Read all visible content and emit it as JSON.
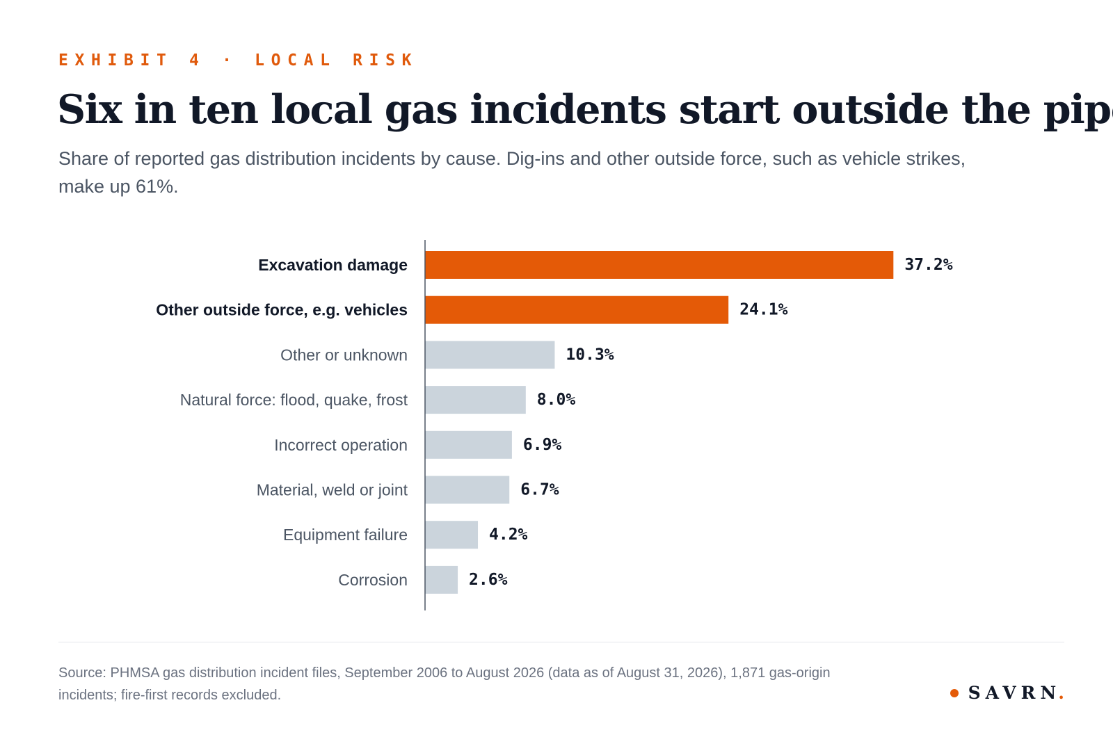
{
  "header": {
    "eyebrow": "EXHIBIT 4 · LOCAL RISK",
    "title": "Six in ten local gas incidents start outside the pipe",
    "subtitle": "Share of reported gas distribution incidents by cause. Dig-ins and other outside force, such as vehicle strikes, make up 61%."
  },
  "chart_data": {
    "type": "bar",
    "orientation": "horizontal",
    "categories": [
      "Excavation damage",
      "Other outside force, e.g. vehicles",
      "Other or unknown",
      "Natural force: flood, quake, frost",
      "Incorrect operation",
      "Material, weld or joint",
      "Equipment failure",
      "Corrosion"
    ],
    "values": [
      37.2,
      24.1,
      10.3,
      8.0,
      6.9,
      6.7,
      4.2,
      2.6
    ],
    "value_labels": [
      "37.2%",
      "24.1%",
      "10.3%",
      "8.0%",
      "6.9%",
      "6.7%",
      "4.2%",
      "2.6%"
    ],
    "highlighted": [
      true,
      true,
      false,
      false,
      false,
      false,
      false,
      false
    ],
    "title": "Six in ten local gas incidents start outside the pipe",
    "xlabel": "",
    "ylabel": "",
    "xlim": [
      0,
      40
    ],
    "grid": false,
    "legend": "none"
  },
  "colors": {
    "accent": "#e45a07",
    "muted_bar": "#cbd4dc",
    "axis": "#4b5563"
  },
  "footer": {
    "source": "Source: PHMSA gas distribution incident files, September 2006 to August 2026 (data as of August 31, 2026), 1,871 gas-origin incidents; fire-first records excluded.",
    "brand": "SAVRN",
    "brand_period": ".",
    "brand_dot_icon": "bullet-dot-icon"
  }
}
